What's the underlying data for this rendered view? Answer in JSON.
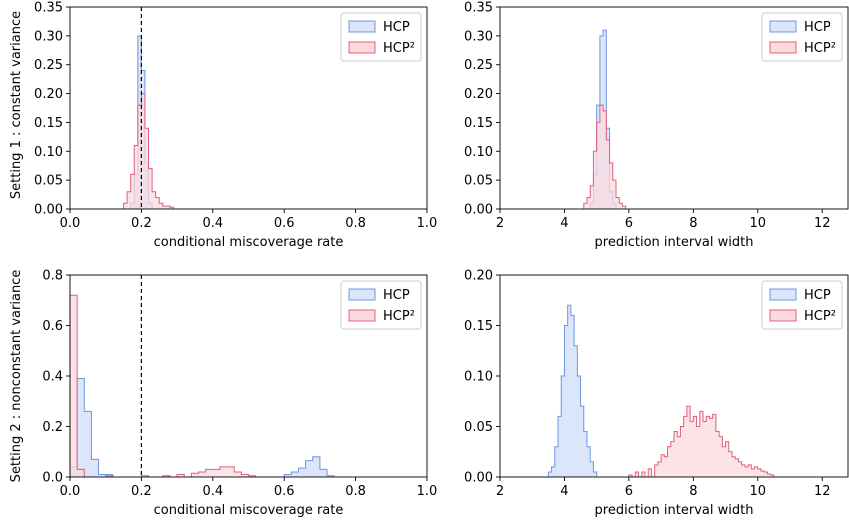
{
  "colors": {
    "hcp_fill": "#dce6fa",
    "hcp_edge": "#6f96e0",
    "hcp2_fill": "#fbd9df",
    "hcp2_edge": "#e06078"
  },
  "row_labels": [
    "Setting 1 : constant variance",
    "Setting 2 : nonconstant variance"
  ],
  "chart_data": [
    {
      "type": "histogram",
      "row": "Setting 1 : constant variance",
      "xlabel": "conditional miscoverage rate",
      "ylabel": "Setting 1 : constant variance",
      "xlim": [
        0.0,
        1.0
      ],
      "ylim": [
        0.0,
        0.35
      ],
      "xticks": [
        "0.0",
        "0.2",
        "0.4",
        "0.6",
        "0.8",
        "1.0"
      ],
      "yticks": [
        "0.00",
        "0.05",
        "0.10",
        "0.15",
        "0.20",
        "0.25",
        "0.30",
        "0.35"
      ],
      "reference_line_x": 0.2,
      "legend": {
        "placement": "top-right",
        "entries": [
          "HCP",
          "HCP²"
        ]
      },
      "series": [
        {
          "name": "HCP",
          "bin_width": 0.01,
          "bins": [
            [
              0.17,
              0.01
            ],
            [
              0.18,
              0.06
            ],
            [
              0.19,
              0.3
            ],
            [
              0.2,
              0.24
            ],
            [
              0.21,
              0.08
            ],
            [
              0.22,
              0.01
            ]
          ]
        },
        {
          "name": "HCP²",
          "bin_width": 0.01,
          "bins": [
            [
              0.15,
              0.01
            ],
            [
              0.16,
              0.03
            ],
            [
              0.17,
              0.06
            ],
            [
              0.18,
              0.11
            ],
            [
              0.19,
              0.18
            ],
            [
              0.2,
              0.2
            ],
            [
              0.21,
              0.14
            ],
            [
              0.22,
              0.07
            ],
            [
              0.23,
              0.03
            ],
            [
              0.24,
              0.02
            ],
            [
              0.25,
              0.01
            ],
            [
              0.26,
              0.005
            ],
            [
              0.27,
              0.005
            ],
            [
              0.28,
              0.003
            ]
          ]
        }
      ]
    },
    {
      "type": "histogram",
      "row": "Setting 1 : constant variance",
      "xlabel": "prediction interval width",
      "xlim": [
        2,
        12.8
      ],
      "ylim": [
        0.0,
        0.35
      ],
      "xticks": [
        "2",
        "4",
        "6",
        "8",
        "10",
        "12"
      ],
      "yticks": [
        "0.00",
        "0.05",
        "0.10",
        "0.15",
        "0.20",
        "0.25",
        "0.30",
        "0.35"
      ],
      "legend": {
        "placement": "top-right",
        "entries": [
          "HCP",
          "HCP²"
        ]
      },
      "series": [
        {
          "name": "HCP",
          "bin_width": 0.1,
          "bins": [
            [
              4.8,
              0.01
            ],
            [
              4.9,
              0.06
            ],
            [
              5.0,
              0.18
            ],
            [
              5.1,
              0.3
            ],
            [
              5.2,
              0.31
            ],
            [
              5.3,
              0.14
            ],
            [
              5.4,
              0.03
            ],
            [
              5.5,
              0.01
            ]
          ]
        },
        {
          "name": "HCP²",
          "bin_width": 0.1,
          "bins": [
            [
              4.6,
              0.01
            ],
            [
              4.7,
              0.02
            ],
            [
              4.8,
              0.04
            ],
            [
              4.9,
              0.1
            ],
            [
              5.0,
              0.15
            ],
            [
              5.1,
              0.18
            ],
            [
              5.2,
              0.17
            ],
            [
              5.3,
              0.12
            ],
            [
              5.4,
              0.08
            ],
            [
              5.5,
              0.05
            ],
            [
              5.6,
              0.02
            ],
            [
              5.7,
              0.01
            ],
            [
              5.8,
              0.005
            ]
          ]
        }
      ]
    },
    {
      "type": "histogram",
      "row": "Setting 2 : nonconstant variance",
      "xlabel": "conditional miscoverage rate",
      "ylabel": "Setting 2 : nonconstant variance",
      "xlim": [
        0.0,
        1.0
      ],
      "ylim": [
        0.0,
        0.8
      ],
      "xticks": [
        "0.0",
        "0.2",
        "0.4",
        "0.6",
        "0.8",
        "1.0"
      ],
      "yticks": [
        "0.0",
        "0.2",
        "0.4",
        "0.6",
        "0.8"
      ],
      "reference_line_x": 0.2,
      "legend": {
        "placement": "top-right",
        "entries": [
          "HCP",
          "HCP²"
        ]
      },
      "series": [
        {
          "name": "HCP",
          "bin_width": 0.02,
          "bins": [
            [
              0.0,
              0.04
            ],
            [
              0.02,
              0.39
            ],
            [
              0.04,
              0.26
            ],
            [
              0.06,
              0.07
            ],
            [
              0.08,
              0.01
            ],
            [
              0.1,
              0.01
            ],
            [
              0.6,
              0.01
            ],
            [
              0.62,
              0.02
            ],
            [
              0.64,
              0.035
            ],
            [
              0.66,
              0.065
            ],
            [
              0.68,
              0.08
            ],
            [
              0.7,
              0.03
            ],
            [
              0.72,
              0.005
            ]
          ]
        },
        {
          "name": "HCP²",
          "bin_width": 0.02,
          "bins": [
            [
              0.0,
              0.72
            ],
            [
              0.02,
              0.03
            ],
            [
              0.1,
              0.005
            ],
            [
              0.2,
              0.005
            ],
            [
              0.26,
              0.005
            ],
            [
              0.3,
              0.01
            ],
            [
              0.34,
              0.015
            ],
            [
              0.36,
              0.02
            ],
            [
              0.38,
              0.03
            ],
            [
              0.4,
              0.03
            ],
            [
              0.42,
              0.04
            ],
            [
              0.44,
              0.04
            ],
            [
              0.46,
              0.02
            ],
            [
              0.48,
              0.01
            ],
            [
              0.5,
              0.005
            ]
          ]
        }
      ]
    },
    {
      "type": "histogram",
      "row": "Setting 2 : nonconstant variance",
      "xlabel": "prediction interval width",
      "xlim": [
        2,
        12.8
      ],
      "ylim": [
        0.0,
        0.2
      ],
      "xticks": [
        "2",
        "4",
        "6",
        "8",
        "10",
        "12"
      ],
      "yticks": [
        "0.00",
        "0.05",
        "0.10",
        "0.15",
        "0.20"
      ],
      "legend": {
        "placement": "top-right",
        "entries": [
          "HCP",
          "HCP²"
        ]
      },
      "series": [
        {
          "name": "HCP",
          "bin_width": 0.1,
          "bins": [
            [
              3.5,
              0.005
            ],
            [
              3.6,
              0.01
            ],
            [
              3.7,
              0.03
            ],
            [
              3.8,
              0.06
            ],
            [
              3.9,
              0.1
            ],
            [
              4.0,
              0.15
            ],
            [
              4.1,
              0.17
            ],
            [
              4.2,
              0.16
            ],
            [
              4.3,
              0.13
            ],
            [
              4.4,
              0.1
            ],
            [
              4.5,
              0.07
            ],
            [
              4.6,
              0.045
            ],
            [
              4.7,
              0.03
            ],
            [
              4.8,
              0.015
            ],
            [
              4.9,
              0.005
            ]
          ]
        },
        {
          "name": "HCP²",
          "bin_width": 0.1,
          "bins": [
            [
              6.0,
              0.002
            ],
            [
              6.2,
              0.005
            ],
            [
              6.4,
              0.005
            ],
            [
              6.6,
              0.008
            ],
            [
              6.8,
              0.012
            ],
            [
              6.9,
              0.015
            ],
            [
              7.0,
              0.022
            ],
            [
              7.1,
              0.02
            ],
            [
              7.2,
              0.03
            ],
            [
              7.3,
              0.035
            ],
            [
              7.4,
              0.045
            ],
            [
              7.5,
              0.04
            ],
            [
              7.6,
              0.05
            ],
            [
              7.7,
              0.06
            ],
            [
              7.8,
              0.07
            ],
            [
              7.9,
              0.055
            ],
            [
              8.0,
              0.06
            ],
            [
              8.1,
              0.05
            ],
            [
              8.2,
              0.065
            ],
            [
              8.3,
              0.055
            ],
            [
              8.4,
              0.06
            ],
            [
              8.5,
              0.058
            ],
            [
              8.6,
              0.062
            ],
            [
              8.7,
              0.045
            ],
            [
              8.8,
              0.04
            ],
            [
              8.9,
              0.03
            ],
            [
              9.0,
              0.035
            ],
            [
              9.1,
              0.025
            ],
            [
              9.2,
              0.02
            ],
            [
              9.3,
              0.018
            ],
            [
              9.4,
              0.015
            ],
            [
              9.5,
              0.012
            ],
            [
              9.6,
              0.01
            ],
            [
              9.7,
              0.012
            ],
            [
              9.8,
              0.008
            ],
            [
              9.9,
              0.01
            ],
            [
              10.0,
              0.008
            ],
            [
              10.1,
              0.006
            ],
            [
              10.2,
              0.005
            ],
            [
              10.3,
              0.003
            ],
            [
              10.4,
              0.002
            ]
          ]
        }
      ]
    }
  ]
}
